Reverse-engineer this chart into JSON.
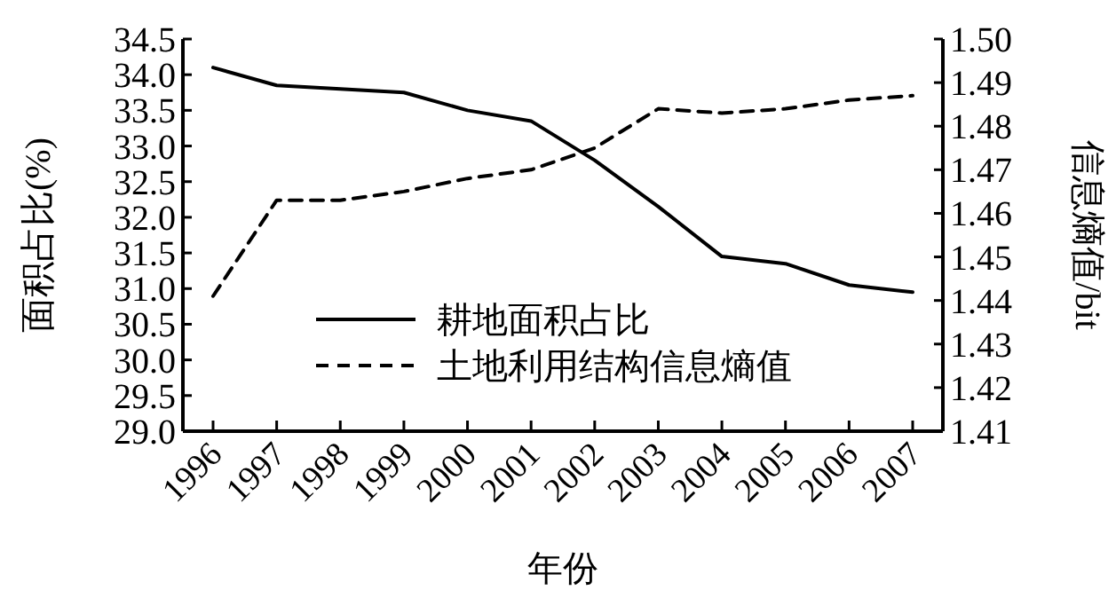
{
  "chart_data": {
    "type": "line",
    "xlabel": "年份",
    "ylabel": "面积占比(%)",
    "y2label": "信息熵值/bit",
    "categories": [
      "1996",
      "1997",
      "1998",
      "1999",
      "2000",
      "2001",
      "2002",
      "2003",
      "2004",
      "2005",
      "2006",
      "2007"
    ],
    "series": [
      {
        "name": "耕地面积占比",
        "color": "#000000",
        "line_style": "solid",
        "values": [
          34.1,
          33.85,
          33.8,
          33.75,
          33.5,
          33.35,
          32.8,
          32.15,
          31.45,
          31.35,
          31.05,
          30.95
        ]
      },
      {
        "name": "土地利用结构信息熵值",
        "color": "#000000",
        "line_style": "dashed",
        "axis": "y2",
        "values": [
          1.441,
          1.463,
          1.463,
          1.465,
          1.468,
          1.47,
          1.475,
          1.484,
          1.483,
          1.484,
          1.486,
          1.487
        ]
      }
    ],
    "ylim": [
      29.0,
      34.5
    ],
    "yticks": [
      {
        "value": 29,
        "label": "29.0"
      },
      {
        "value": 29.5,
        "label": "29.5"
      },
      {
        "value": 30,
        "label": "30.0"
      },
      {
        "value": 30.5,
        "label": "30.5"
      },
      {
        "value": 31,
        "label": "31.0"
      },
      {
        "value": 31.5,
        "label": "31.5"
      },
      {
        "value": 32,
        "label": "32.0"
      },
      {
        "value": 32.5,
        "label": "32.5"
      },
      {
        "value": 33,
        "label": "33.0"
      },
      {
        "value": 33.5,
        "label": "33.5"
      },
      {
        "value": 34,
        "label": "34.0"
      },
      {
        "value": 34.5,
        "label": "34.5"
      }
    ],
    "y2lim": [
      1.41,
      1.5
    ],
    "y2ticks": [
      1.41,
      1.42,
      1.43,
      1.44,
      1.45,
      1.46,
      1.47,
      1.48,
      1.49,
      {
        "value": 1.5,
        "label": "1.50"
      }
    ],
    "legend": "bottom",
    "grid": false,
    "marker": "none"
  }
}
